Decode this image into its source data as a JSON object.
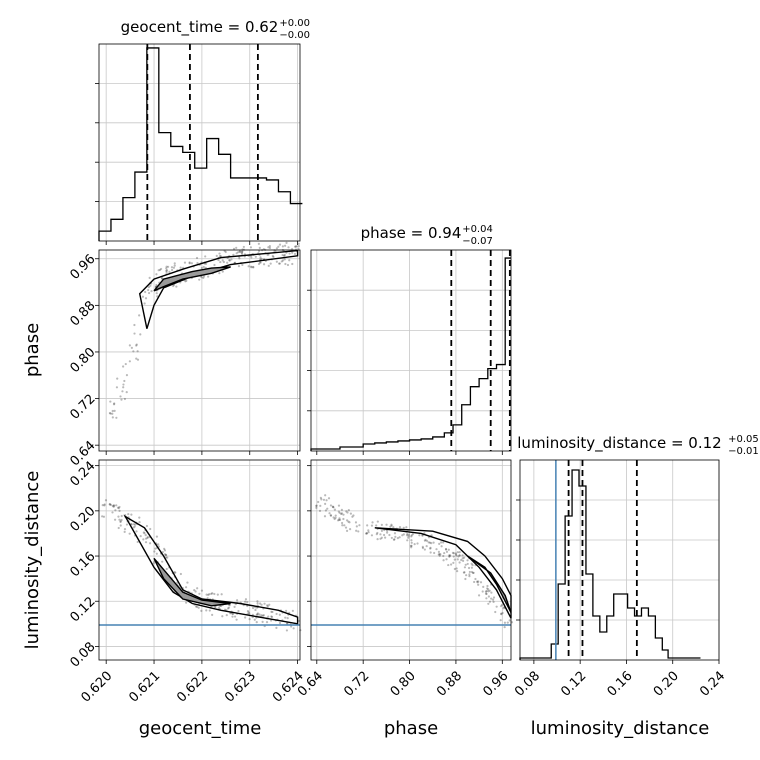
{
  "figure_type": "corner-plot",
  "chart_data": [
    {
      "type": "histogram",
      "panel": "geocent_time",
      "title": "geocent_time = 0.62",
      "title_err": {
        "plus": "+0.00",
        "minus": "−0.00"
      },
      "xlim": [
        0.61985,
        0.62405
      ],
      "ylim": [
        0,
        1
      ],
      "bins": [
        {
          "x0": 0.61985,
          "x1": 0.6201,
          "h": 0.05
        },
        {
          "x0": 0.6201,
          "x1": 0.62035,
          "h": 0.11
        },
        {
          "x0": 0.62035,
          "x1": 0.6206,
          "h": 0.22
        },
        {
          "x0": 0.6206,
          "x1": 0.62085,
          "h": 0.35
        },
        {
          "x0": 0.62085,
          "x1": 0.6211,
          "h": 0.98
        },
        {
          "x0": 0.6211,
          "x1": 0.62135,
          "h": 0.55
        },
        {
          "x0": 0.62135,
          "x1": 0.6216,
          "h": 0.48
        },
        {
          "x0": 0.6216,
          "x1": 0.62185,
          "h": 0.45
        },
        {
          "x0": 0.62185,
          "x1": 0.6221,
          "h": 0.37
        },
        {
          "x0": 0.6221,
          "x1": 0.62235,
          "h": 0.52
        },
        {
          "x0": 0.62235,
          "x1": 0.6226,
          "h": 0.44
        },
        {
          "x0": 0.6226,
          "x1": 0.62285,
          "h": 0.32
        },
        {
          "x0": 0.62285,
          "x1": 0.6231,
          "h": 0.32
        },
        {
          "x0": 0.6231,
          "x1": 0.62335,
          "h": 0.32
        },
        {
          "x0": 0.62335,
          "x1": 0.6236,
          "h": 0.31
        },
        {
          "x0": 0.6236,
          "x1": 0.62385,
          "h": 0.25
        },
        {
          "x0": 0.62385,
          "x1": 0.6241,
          "h": 0.19
        }
      ],
      "quantiles": [
        0.62086,
        0.62175,
        0.62317
      ],
      "grid": true
    },
    {
      "type": "histogram",
      "panel": "phase",
      "title": "phase = 0.94",
      "title_err": {
        "plus": "+0.04",
        "minus": "−0.07"
      },
      "xlim": [
        0.63,
        0.975
      ],
      "ylim": [
        0,
        1
      ],
      "bins": [
        {
          "x0": 0.63,
          "x1": 0.68,
          "h": 0.01
        },
        {
          "x0": 0.68,
          "x1": 0.72,
          "h": 0.02
        },
        {
          "x0": 0.72,
          "x1": 0.74,
          "h": 0.035
        },
        {
          "x0": 0.74,
          "x1": 0.76,
          "h": 0.04
        },
        {
          "x0": 0.76,
          "x1": 0.78,
          "h": 0.045
        },
        {
          "x0": 0.78,
          "x1": 0.8,
          "h": 0.05
        },
        {
          "x0": 0.8,
          "x1": 0.82,
          "h": 0.055
        },
        {
          "x0": 0.82,
          "x1": 0.84,
          "h": 0.06
        },
        {
          "x0": 0.84,
          "x1": 0.86,
          "h": 0.07
        },
        {
          "x0": 0.86,
          "x1": 0.875,
          "h": 0.09
        },
        {
          "x0": 0.875,
          "x1": 0.89,
          "h": 0.13
        },
        {
          "x0": 0.89,
          "x1": 0.905,
          "h": 0.23
        },
        {
          "x0": 0.905,
          "x1": 0.92,
          "h": 0.32
        },
        {
          "x0": 0.92,
          "x1": 0.935,
          "h": 0.36
        },
        {
          "x0": 0.935,
          "x1": 0.95,
          "h": 0.41
        },
        {
          "x0": 0.95,
          "x1": 0.965,
          "h": 0.43
        },
        {
          "x0": 0.965,
          "x1": 0.975,
          "h": 0.96
        }
      ],
      "quantiles": [
        0.872,
        0.94,
        0.973
      ],
      "grid": true
    },
    {
      "type": "histogram",
      "panel": "luminosity_distance",
      "title": "luminosity_distance = 0.12",
      "title_err": {
        "plus": "+0.05",
        "minus": "−0.01"
      },
      "xlim": [
        0.068,
        0.24
      ],
      "ylim": [
        0,
        1
      ],
      "bins": [
        {
          "x0": 0.068,
          "x1": 0.095,
          "h": 0.01
        },
        {
          "x0": 0.095,
          "x1": 0.101,
          "h": 0.08
        },
        {
          "x0": 0.101,
          "x1": 0.107,
          "h": 0.38
        },
        {
          "x0": 0.107,
          "x1": 0.113,
          "h": 0.72
        },
        {
          "x0": 0.113,
          "x1": 0.119,
          "h": 0.95
        },
        {
          "x0": 0.119,
          "x1": 0.125,
          "h": 0.87
        },
        {
          "x0": 0.125,
          "x1": 0.131,
          "h": 0.43
        },
        {
          "x0": 0.131,
          "x1": 0.137,
          "h": 0.22
        },
        {
          "x0": 0.137,
          "x1": 0.143,
          "h": 0.14
        },
        {
          "x0": 0.143,
          "x1": 0.149,
          "h": 0.22
        },
        {
          "x0": 0.149,
          "x1": 0.155,
          "h": 0.33
        },
        {
          "x0": 0.155,
          "x1": 0.161,
          "h": 0.33
        },
        {
          "x0": 0.161,
          "x1": 0.167,
          "h": 0.26
        },
        {
          "x0": 0.167,
          "x1": 0.173,
          "h": 0.22
        },
        {
          "x0": 0.173,
          "x1": 0.179,
          "h": 0.26
        },
        {
          "x0": 0.179,
          "x1": 0.185,
          "h": 0.22
        },
        {
          "x0": 0.185,
          "x1": 0.191,
          "h": 0.11
        },
        {
          "x0": 0.191,
          "x1": 0.196,
          "h": 0.05
        },
        {
          "x0": 0.196,
          "x1": 0.224,
          "h": 0.01
        }
      ],
      "quantiles": [
        0.11,
        0.122,
        0.169
      ],
      "truth": 0.099,
      "grid": true
    },
    {
      "type": "scatter",
      "panel": "phase vs geocent_time",
      "xlim": [
        0.61985,
        0.62405
      ],
      "ylim": [
        0.63,
        0.975
      ],
      "xlabel": "",
      "ylabel": "phase",
      "ticks_y": [
        "0.64",
        "0.72",
        "0.80",
        "0.88",
        "0.96"
      ],
      "trend": [
        [
          0.6201,
          0.7
        ],
        [
          0.62045,
          0.76
        ],
        [
          0.62065,
          0.83
        ],
        [
          0.6208,
          0.9
        ],
        [
          0.6211,
          0.925
        ],
        [
          0.6216,
          0.935
        ],
        [
          0.6222,
          0.95
        ],
        [
          0.6228,
          0.963
        ],
        [
          0.6235,
          0.968
        ],
        [
          0.624,
          0.97
        ]
      ],
      "contours": [
        [
          [
            0.62085,
            0.84
          ],
          [
            0.6207,
            0.9
          ],
          [
            0.621,
            0.925
          ],
          [
            0.6216,
            0.942
          ],
          [
            0.6224,
            0.962
          ],
          [
            0.624,
            0.974
          ],
          [
            0.624,
            0.965
          ],
          [
            0.6226,
            0.95
          ],
          [
            0.6218,
            0.93
          ],
          [
            0.6212,
            0.91
          ],
          [
            0.621,
            0.88
          ],
          [
            0.62085,
            0.84
          ]
        ],
        [
          [
            0.621,
            0.905
          ],
          [
            0.6212,
            0.925
          ],
          [
            0.6218,
            0.938
          ],
          [
            0.6222,
            0.944
          ],
          [
            0.6226,
            0.946
          ],
          [
            0.6222,
            0.935
          ],
          [
            0.6216,
            0.925
          ],
          [
            0.6212,
            0.912
          ],
          [
            0.621,
            0.905
          ]
        ]
      ]
    },
    {
      "type": "scatter",
      "panel": "luminosity_distance vs geocent_time",
      "xlim": [
        0.61985,
        0.62405
      ],
      "ylim": [
        0.068,
        0.245
      ],
      "xlabel": "geocent_time",
      "ylabel": "luminosity_distance",
      "ticks_x": [
        "0.620",
        "0.621",
        "0.622",
        "0.623",
        "0.624"
      ],
      "ticks_y": [
        "0.08",
        "0.12",
        "0.16",
        "0.20",
        "0.24"
      ],
      "truth_y": 0.099,
      "trend": [
        [
          0.62,
          0.205
        ],
        [
          0.6204,
          0.192
        ],
        [
          0.6208,
          0.18
        ],
        [
          0.6212,
          0.155
        ],
        [
          0.6216,
          0.13
        ],
        [
          0.622,
          0.12
        ],
        [
          0.6226,
          0.115
        ],
        [
          0.6232,
          0.11
        ],
        [
          0.624,
          0.101
        ]
      ],
      "contours": [
        [
          [
            0.6204,
            0.195
          ],
          [
            0.6208,
            0.185
          ],
          [
            0.6212,
            0.16
          ],
          [
            0.6216,
            0.13
          ],
          [
            0.622,
            0.122
          ],
          [
            0.6228,
            0.118
          ],
          [
            0.6236,
            0.112
          ],
          [
            0.624,
            0.106
          ],
          [
            0.624,
            0.1
          ],
          [
            0.6232,
            0.106
          ],
          [
            0.6224,
            0.112
          ],
          [
            0.6218,
            0.118
          ],
          [
            0.6214,
            0.128
          ],
          [
            0.621,
            0.15
          ],
          [
            0.6206,
            0.18
          ],
          [
            0.6204,
            0.195
          ]
        ],
        [
          [
            0.621,
            0.158
          ],
          [
            0.6212,
            0.148
          ],
          [
            0.6216,
            0.128
          ],
          [
            0.622,
            0.121
          ],
          [
            0.6226,
            0.118
          ],
          [
            0.6222,
            0.116
          ],
          [
            0.6216,
            0.122
          ],
          [
            0.6212,
            0.14
          ],
          [
            0.621,
            0.158
          ]
        ]
      ]
    },
    {
      "type": "scatter",
      "panel": "luminosity_distance vs phase",
      "xlim": [
        0.63,
        0.975
      ],
      "ylim": [
        0.068,
        0.245
      ],
      "xlabel": "phase",
      "ylabel": "",
      "ticks_x": [
        "0.64",
        "0.72",
        "0.80",
        "0.88",
        "0.96"
      ],
      "truth_y": 0.099,
      "trend": [
        [
          0.64,
          0.21
        ],
        [
          0.68,
          0.195
        ],
        [
          0.72,
          0.185
        ],
        [
          0.78,
          0.18
        ],
        [
          0.84,
          0.17
        ],
        [
          0.9,
          0.15
        ],
        [
          0.94,
          0.125
        ],
        [
          0.975,
          0.1
        ]
      ],
      "contours": [
        [
          [
            0.74,
            0.185
          ],
          [
            0.82,
            0.18
          ],
          [
            0.88,
            0.17
          ],
          [
            0.92,
            0.15
          ],
          [
            0.95,
            0.13
          ],
          [
            0.975,
            0.105
          ],
          [
            0.975,
            0.125
          ],
          [
            0.96,
            0.14
          ],
          [
            0.93,
            0.16
          ],
          [
            0.9,
            0.173
          ],
          [
            0.84,
            0.182
          ],
          [
            0.74,
            0.185
          ]
        ],
        [
          [
            0.9,
            0.16
          ],
          [
            0.93,
            0.15
          ],
          [
            0.95,
            0.135
          ],
          [
            0.975,
            0.11
          ],
          [
            0.965,
            0.125
          ],
          [
            0.94,
            0.145
          ],
          [
            0.9,
            0.16
          ]
        ]
      ]
    }
  ],
  "colors": {
    "truth": "#4682b4",
    "contour": "#000000",
    "fill": "#9a9a9a",
    "grid": "#c8c8c8",
    "points": "#3a3a3a"
  }
}
